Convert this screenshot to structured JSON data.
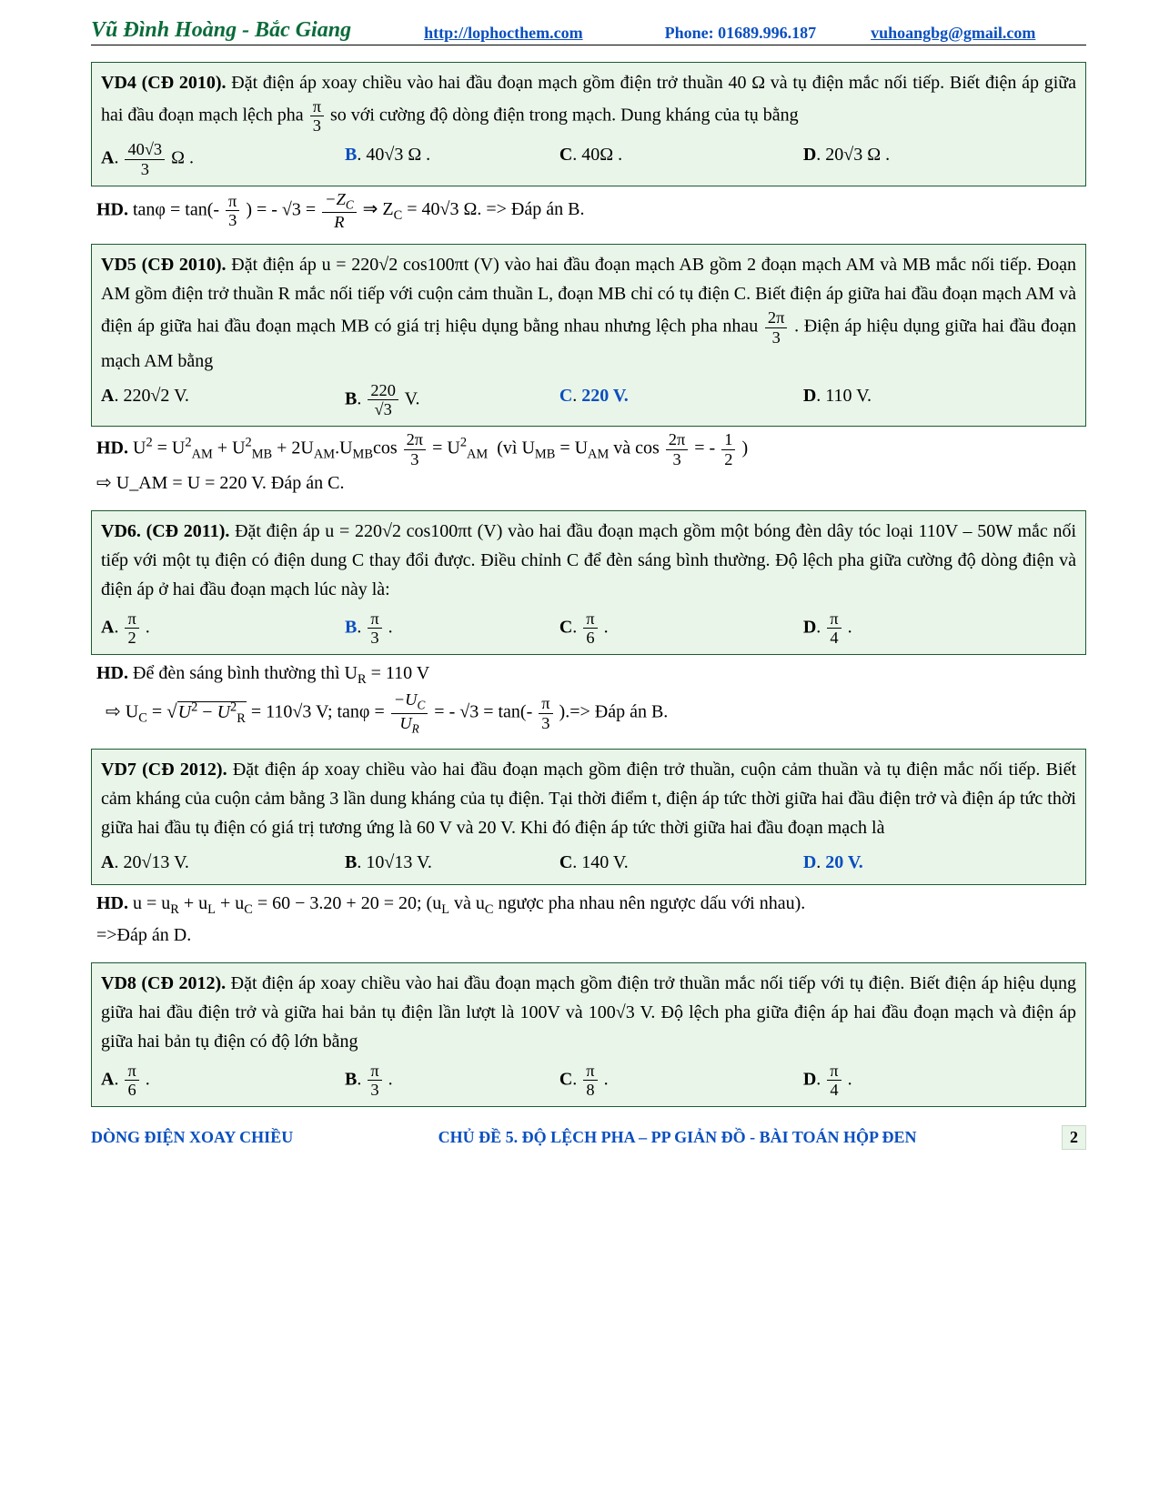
{
  "header": {
    "author": "Vũ Đình Hoàng - Bắc Giang",
    "website": "http://lophocthem.com",
    "phone": "Phone: 01689.996.187",
    "email": "vuhoangbg@gmail.com"
  },
  "problems": {
    "vd4": {
      "title": "VD4 (CĐ 2010).",
      "text1": " Đặt điện áp xoay chiều vào hai đầu đoạn mạch gồm điện trở thuần 40 Ω và tụ điện mắc nối tiếp. Biết điện áp giữa hai đầu đoạn mạch lệch pha ",
      "frac1": {
        "num": "π",
        "den": "3"
      },
      "text2": " so với cường độ dòng điện trong mạch. Dung kháng của tụ bằng",
      "A": {
        "frac": {
          "num": "40√3",
          "den": "3"
        },
        "tail": " Ω ."
      },
      "B": "40√3 Ω .",
      "C": "40Ω .",
      "D": "20√3 Ω .",
      "hd_label": "HD.",
      "hd1": " tanφ = tan(- ",
      "hd_frac1": {
        "num": "π",
        "den": "3"
      },
      "hd2": " ) = - √3 = ",
      "hd_frac2": {
        "num": "−Z_C",
        "den": "R"
      },
      "hd3": " ⇒ Z_C = 40√3 Ω. => Đáp án B."
    },
    "vd5": {
      "title": "VD5 (CĐ 2010).",
      "text1": " Đặt điện áp u = 220√2 cos100πt (V) vào hai đầu đoạn mạch AB gồm 2 đoạn mạch AM và MB mắc nối tiếp. Đoạn AM gồm điện trở thuần R mắc nối tiếp với cuộn cảm thuần L, đoạn MB chỉ có tụ điện C. Biết điện áp giữa hai đầu đoạn mạch AM và điện áp giữa hai đầu đoạn mạch MB có giá trị hiệu dụng bằng nhau nhưng lệch pha nhau ",
      "frac1": {
        "num": "2π",
        "den": "3"
      },
      "text2": ". Điện áp hiệu dụng giữa hai đầu đoạn mạch AM bằng",
      "A": "220√2 V.",
      "B": {
        "frac": {
          "num": "220",
          "den": "√3"
        },
        "tail": " V."
      },
      "C": "220 V.",
      "D": "110 V.",
      "hd_label": "HD.",
      "hd_line1a": " U² = U²_AM + U²_MB + 2U_AM.U_MB cos",
      "hd_frac_a": {
        "num": "2π",
        "den": "3"
      },
      "hd_line1b": " = U²_AM  (vì U_MB = U_AM và cos",
      "hd_frac_b": {
        "num": "2π",
        "den": "3"
      },
      "hd_line1c": " = - ",
      "hd_frac_c": {
        "num": "1",
        "den": "2"
      },
      "hd_line1d": " )",
      "hd_line2": "⇨ U_AM = U = 220 V. Đáp án C."
    },
    "vd6": {
      "title": "VD6. (CĐ 2011).",
      "text": " Đặt điện áp u = 220√2 cos100πt (V) vào hai đầu đoạn mạch gồm một bóng đèn dây tóc loại 110V – 50W mắc nối tiếp với một tụ điện có điện dung C thay đổi được. Điều chỉnh C để đèn sáng bình thường. Độ lệch pha giữa cường độ dòng điện và điện áp ở hai đầu đoạn mạch lúc này là:",
      "A": {
        "num": "π",
        "den": "2"
      },
      "B": {
        "num": "π",
        "den": "3"
      },
      "C": {
        "num": "π",
        "den": "6"
      },
      "D": {
        "num": "π",
        "den": "4"
      },
      "hd_label": "HD.",
      "hd1": " Để đèn sáng bình thường thì U_R = 110 V",
      "hd2a": "⇨ U_C = √(U² − U²_R) = 110√3 V; tanφ = ",
      "hd_frac1": {
        "num": "−U_C",
        "den": "U_R"
      },
      "hd2b": " = - √3 = tan(- ",
      "hd_frac2": {
        "num": "π",
        "den": "3"
      },
      "hd2c": " ).=> Đáp án B."
    },
    "vd7": {
      "title": "VD7 (CĐ 2012).",
      "text": " Đặt điện áp xoay chiều vào hai đầu đoạn mạch gồm điện trở thuần, cuộn cảm thuần và tụ điện mắc nối tiếp. Biết cảm kháng của cuộn cảm bằng 3 lần dung kháng của tụ điện. Tại thời điểm t, điện áp tức thời giữa hai đầu điện trở và điện áp tức thời giữa hai đầu tụ điện có giá trị tương ứng là 60 V và 20 V. Khi đó điện áp tức thời giữa hai đầu đoạn mạch là",
      "A": "20√13 V.",
      "B": "10√13 V.",
      "C": "140 V.",
      "D": "20 V.",
      "hd_label": "HD.",
      "hd": " u = u_R + u_L + u_C = 60 − 3.20 + 20 = 20; (u_L và u_C ngược pha nhau nên ngược dấu với nhau). =>Đáp án D."
    },
    "vd8": {
      "title": "VD8 (CĐ 2012).",
      "text": " Đặt điện áp xoay chiều vào hai đầu đoạn mạch gồm điện trở thuần mắc nối tiếp với tụ điện. Biết điện áp hiệu dụng giữa hai đầu điện trở và giữa hai bản tụ điện lần lượt là 100V và 100√3 V. Độ lệch pha giữa điện áp hai đầu đoạn mạch và điện áp giữa hai bản tụ điện có độ lớn bằng",
      "A": {
        "num": "π",
        "den": "6"
      },
      "B": {
        "num": "π",
        "den": "3"
      },
      "C": {
        "num": "π",
        "den": "8"
      },
      "D": {
        "num": "π",
        "den": "4"
      }
    }
  },
  "footer": {
    "left": "DÒNG ĐIỆN XOAY CHIỀU",
    "center": "CHỦ ĐỀ 5. ĐỘ LỆCH PHA – PP GIẢN ĐỒ - BÀI TOÁN HỘP ĐEN",
    "page": "2"
  },
  "watermark": "VŨ ĐÌNH HOÀNG"
}
